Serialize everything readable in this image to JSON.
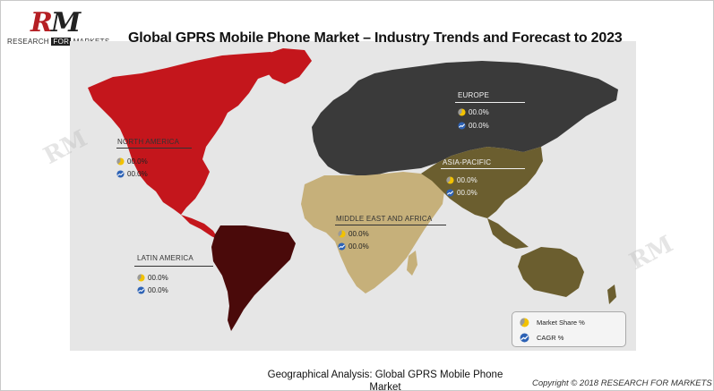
{
  "title": "Global GPRS Mobile Phone Market – Industry Trends and Forecast to 2023",
  "logo": {
    "mark_r": "R",
    "mark_m": "M",
    "tagline_a": "RESEARCH",
    "tagline_for": "FOR",
    "tagline_b": "MARKETS"
  },
  "regions": [
    {
      "name": "NORTH AMERICA",
      "market_share": "00.0%",
      "cagr": "00.0%",
      "color": "#c4161c"
    },
    {
      "name": "EUROPE",
      "market_share": "00.0%",
      "cagr": "00.0%",
      "color": "#3a3a3a"
    },
    {
      "name": "ASIA-PACIFIC",
      "market_share": "00.0%",
      "cagr": "00.0%",
      "color": "#6b5e2f"
    },
    {
      "name": "MIDDLE EAST AND AFRICA",
      "market_share": "00.0%",
      "cagr": "00.0%",
      "color": "#c6b07a"
    },
    {
      "name": "LATIN AMERICA",
      "market_share": "00.0%",
      "cagr": "00.0%",
      "color": "#4a0a0a"
    }
  ],
  "legend": {
    "market_share_label": "Market Share %",
    "cagr_label": "CAGR %"
  },
  "caption": "Geographical Analysis: Global GPRS Mobile Phone Market",
  "copyright": "Copyright © 2018 RESEARCH FOR MARKETS",
  "icons": {
    "market_share": "pie-chart-icon",
    "cagr": "growth-chart-icon"
  }
}
